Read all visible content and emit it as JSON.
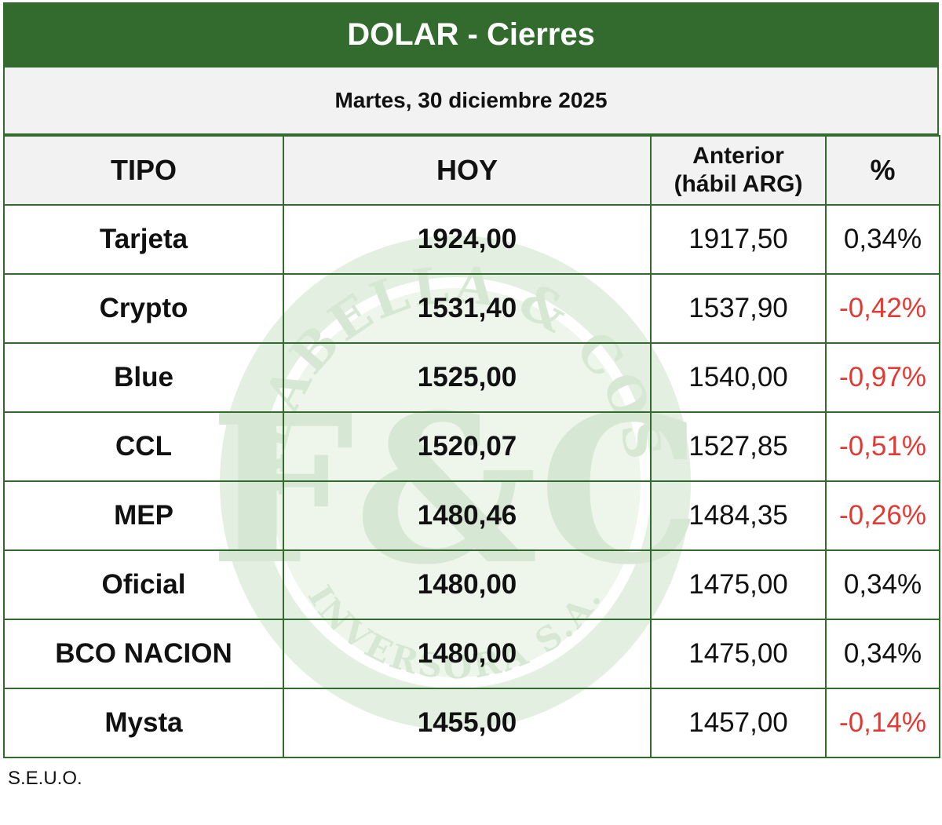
{
  "title": "DOLAR - Cierres",
  "date": "Martes, 30 diciembre 2025",
  "headers": {
    "tipo": "TIPO",
    "hoy": "HOY",
    "anterior_line1": "Anterior",
    "anterior_line2": "(hábil ARG)",
    "pct": "%"
  },
  "rows": [
    {
      "tipo": "Tarjeta",
      "hoy": "1924,00",
      "anterior": "1917,50",
      "pct": "0,34%",
      "negative": false
    },
    {
      "tipo": "Crypto",
      "hoy": "1531,40",
      "anterior": "1537,90",
      "pct": "-0,42%",
      "negative": true
    },
    {
      "tipo": "Blue",
      "hoy": "1525,00",
      "anterior": "1540,00",
      "pct": "-0,97%",
      "negative": true
    },
    {
      "tipo": "CCL",
      "hoy": "1520,07",
      "anterior": "1527,85",
      "pct": "-0,51%",
      "negative": true
    },
    {
      "tipo": "MEP",
      "hoy": "1480,46",
      "anterior": "1484,35",
      "pct": "-0,26%",
      "negative": true
    },
    {
      "tipo": "Oficial",
      "hoy": "1480,00",
      "anterior": "1475,00",
      "pct": "0,34%",
      "negative": false
    },
    {
      "tipo": "BCO NACION",
      "hoy": "1480,00",
      "anterior": "1475,00",
      "pct": "0,34%",
      "negative": false
    },
    {
      "tipo": "Mysta",
      "hoy": "1455,00",
      "anterior": "1457,00",
      "pct": "-0,14%",
      "negative": true
    }
  ],
  "watermark": {
    "top_text": "FALABELLA & COSSI",
    "bottom_text": "INVERSORA S.A.",
    "monogram": "F&C"
  },
  "note": "S.E.U.O.",
  "colors": {
    "brand_green": "#326b2d",
    "header_bg": "#f2f2f2",
    "negative_red": "#e03a35",
    "watermark_green": "#dfeedd"
  }
}
